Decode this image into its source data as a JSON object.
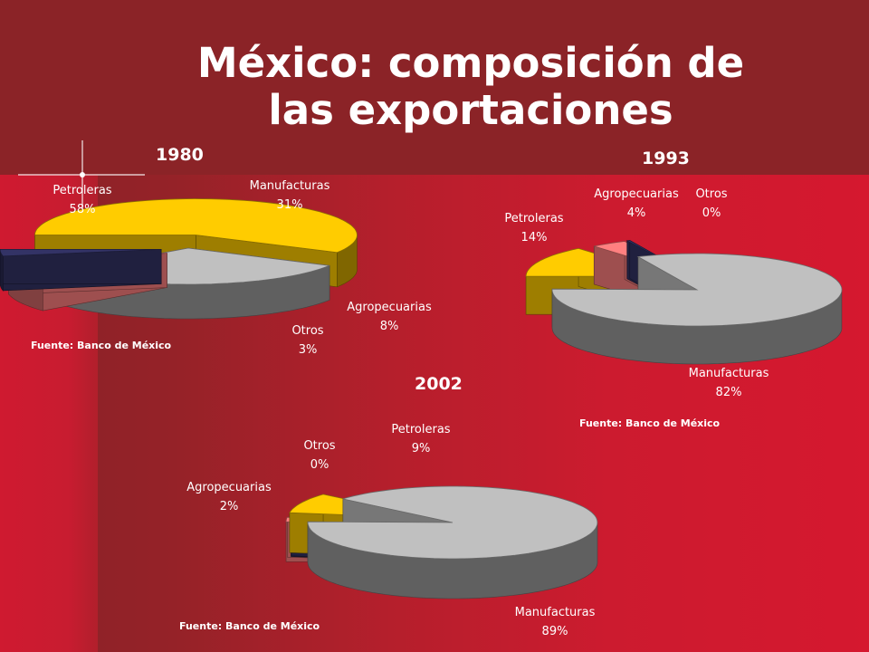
{
  "title_line1": "México: composición de",
  "title_line2": "las exportaciones",
  "chart_data": [
    {
      "type": "pie",
      "year": "1980",
      "categories": [
        "Petroleras",
        "Manufacturas",
        "Agropecuarias",
        "Otros"
      ],
      "values": [
        58,
        31,
        8,
        3
      ],
      "value_labels": [
        "58%",
        "31%",
        "8%",
        "3%"
      ],
      "source": "Fuente: Banco de México",
      "style": "3d-exploded"
    },
    {
      "type": "pie",
      "year": "1993",
      "categories": [
        "Petroleras",
        "Agropecuarias",
        "Otros",
        "Manufacturas"
      ],
      "values": [
        14,
        4,
        0,
        82
      ],
      "value_labels": [
        "14%",
        "4%",
        "0%",
        "82%"
      ],
      "source": "Fuente: Banco de México",
      "style": "3d-exploded"
    },
    {
      "type": "pie",
      "year": "2002",
      "categories": [
        "Agropecuarias",
        "Otros",
        "Petroleras",
        "Manufacturas"
      ],
      "values": [
        2,
        0,
        9,
        89
      ],
      "value_labels": [
        "2%",
        "0%",
        "9%",
        "89%"
      ],
      "source": "Fuente: Banco de México",
      "style": "3d-exploded"
    }
  ],
  "colors": {
    "Petroleras": "#ffcc00",
    "Manufacturas": "#c0c0c0",
    "Agropecuarias": "#ff8080",
    "Otros": "#333366"
  }
}
